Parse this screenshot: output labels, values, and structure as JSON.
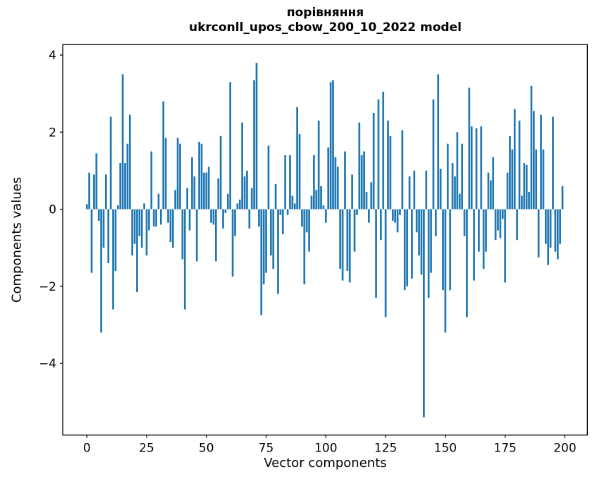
{
  "title": {
    "line1": "порівняння",
    "line2": "ukrconll_upos_cbow_200_10_2022 model"
  },
  "axes": {
    "xlabel": "Vector components",
    "ylabel": "Components values",
    "x_ticks": [
      0,
      25,
      50,
      75,
      100,
      125,
      150,
      175,
      200
    ],
    "y_ticks": [
      4,
      2,
      0,
      -2,
      -4
    ],
    "xlim": [
      -10.1,
      209.4
    ],
    "ylim": [
      -5.86,
      4.27
    ]
  },
  "chart_data": {
    "type": "bar",
    "title": "порівняння\nukrconll_upos_cbow_200_10_2022 model",
    "xlabel": "Vector components",
    "ylabel": "Components values",
    "legend": "none",
    "grid": false,
    "bar_color": "#1f77b4",
    "bar_width": 0.8,
    "x_start": 0,
    "x_end": 199,
    "values": [
      0.13,
      0.95,
      -1.65,
      0.9,
      1.45,
      -0.3,
      -3.2,
      -1.0,
      0.9,
      -1.4,
      2.4,
      -2.6,
      -1.6,
      0.1,
      1.2,
      3.5,
      1.2,
      1.7,
      2.45,
      -1.2,
      -0.9,
      -2.15,
      -0.7,
      -1.0,
      0.15,
      -1.2,
      -0.55,
      1.5,
      -0.45,
      -0.45,
      0.4,
      -0.4,
      2.8,
      1.85,
      -0.35,
      -0.85,
      -1.0,
      0.5,
      1.85,
      1.7,
      -1.3,
      -2.6,
      0.55,
      -0.55,
      1.35,
      0.85,
      -1.35,
      1.75,
      1.7,
      0.95,
      0.95,
      1.1,
      -0.35,
      -0.4,
      -1.35,
      0.8,
      1.9,
      -0.5,
      -0.1,
      0.4,
      3.3,
      -1.75,
      -0.7,
      0.15,
      0.25,
      2.25,
      0.85,
      1.0,
      -0.5,
      0.55,
      3.35,
      3.8,
      -0.45,
      -2.75,
      -1.95,
      -1.65,
      1.65,
      -1.2,
      -1.55,
      0.65,
      -2.2,
      -0.15,
      -0.65,
      1.4,
      -0.15,
      1.4,
      0.35,
      0.15,
      2.65,
      1.95,
      -0.45,
      -1.95,
      -0.6,
      -1.1,
      0.35,
      1.4,
      0.5,
      2.3,
      0.6,
      0.1,
      -0.35,
      1.6,
      3.3,
      3.35,
      1.35,
      1.1,
      -1.55,
      -1.85,
      1.5,
      -1.6,
      -1.9,
      0.9,
      -1.1,
      -0.15,
      2.25,
      1.4,
      1.5,
      0.45,
      -0.35,
      0.7,
      2.5,
      -2.3,
      2.85,
      -0.8,
      3.05,
      -2.8,
      2.3,
      1.9,
      -0.3,
      -0.35,
      -0.6,
      -0.15,
      2.05,
      -2.1,
      -2.0,
      0.85,
      -1.8,
      1.0,
      -0.6,
      -1.2,
      -1.7,
      -5.4,
      1.0,
      -2.3,
      -1.65,
      2.85,
      -0.7,
      3.5,
      1.05,
      -2.1,
      -3.2,
      1.7,
      -2.1,
      1.2,
      0.85,
      2.0,
      0.4,
      1.7,
      -0.7,
      -2.8,
      3.15,
      2.15,
      -1.85,
      2.1,
      -1.1,
      2.15,
      -1.55,
      -1.1,
      0.95,
      0.75,
      1.35,
      -0.8,
      -0.55,
      -0.75,
      -0.25,
      -1.9,
      0.95,
      1.9,
      1.55,
      2.6,
      -0.8,
      2.3,
      0.35,
      1.2,
      1.15,
      0.45,
      3.2,
      2.55,
      1.55,
      -1.25,
      2.45,
      1.55,
      -0.9,
      -1.45,
      -1.0,
      2.4,
      -1.1,
      -1.3,
      -0.9,
      0.6
    ]
  }
}
